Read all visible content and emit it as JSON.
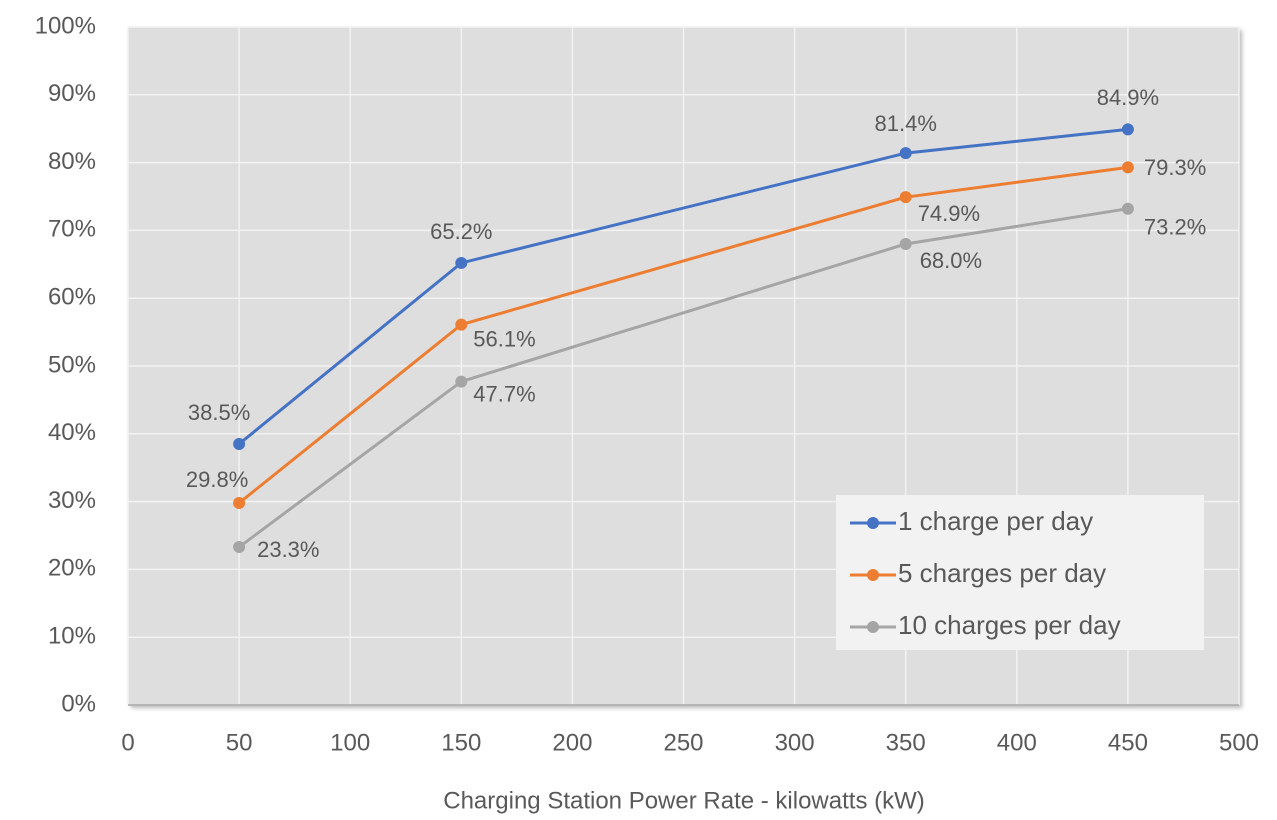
{
  "chart_data": {
    "type": "line",
    "x_label": "Charging Station Power Rate - kilowatts (kW)",
    "x": [
      50,
      150,
      350,
      450
    ],
    "series": [
      {
        "name": "1 charge per day",
        "color": "#4472c4",
        "values": [
          38.5,
          65.2,
          81.4,
          84.9
        ],
        "value_labels": [
          "38.5%",
          "65.2%",
          "81.4%",
          "84.9%"
        ]
      },
      {
        "name": "5 charges per day",
        "color": "#ed7d31",
        "values": [
          29.8,
          56.1,
          74.9,
          79.3
        ],
        "value_labels": [
          "29.8%",
          "56.1%",
          "74.9%",
          "79.3%"
        ]
      },
      {
        "name": "10 charges per day",
        "color": "#a5a5a5",
        "values": [
          23.3,
          47.7,
          68.0,
          73.2
        ],
        "value_labels": [
          "23.3%",
          "47.7%",
          "68.0%",
          "73.2%"
        ]
      }
    ],
    "xlim": [
      0,
      500
    ],
    "xticks": [
      0,
      50,
      100,
      150,
      200,
      250,
      300,
      350,
      400,
      450,
      500
    ],
    "ylim": [
      0,
      100
    ],
    "yticks": [
      {
        "value": 0,
        "label": "0%"
      },
      {
        "value": 10,
        "label": "10%"
      },
      {
        "value": 20,
        "label": "20%"
      },
      {
        "value": 30,
        "label": "30%"
      },
      {
        "value": 40,
        "label": "40%"
      },
      {
        "value": 50,
        "label": "50%"
      },
      {
        "value": 60,
        "label": "60%"
      },
      {
        "value": 70,
        "label": "70%"
      },
      {
        "value": 80,
        "label": "80%"
      },
      {
        "value": 90,
        "label": "90%"
      },
      {
        "value": 100,
        "label": "100%"
      }
    ],
    "grid": true,
    "legend": "lower right"
  }
}
